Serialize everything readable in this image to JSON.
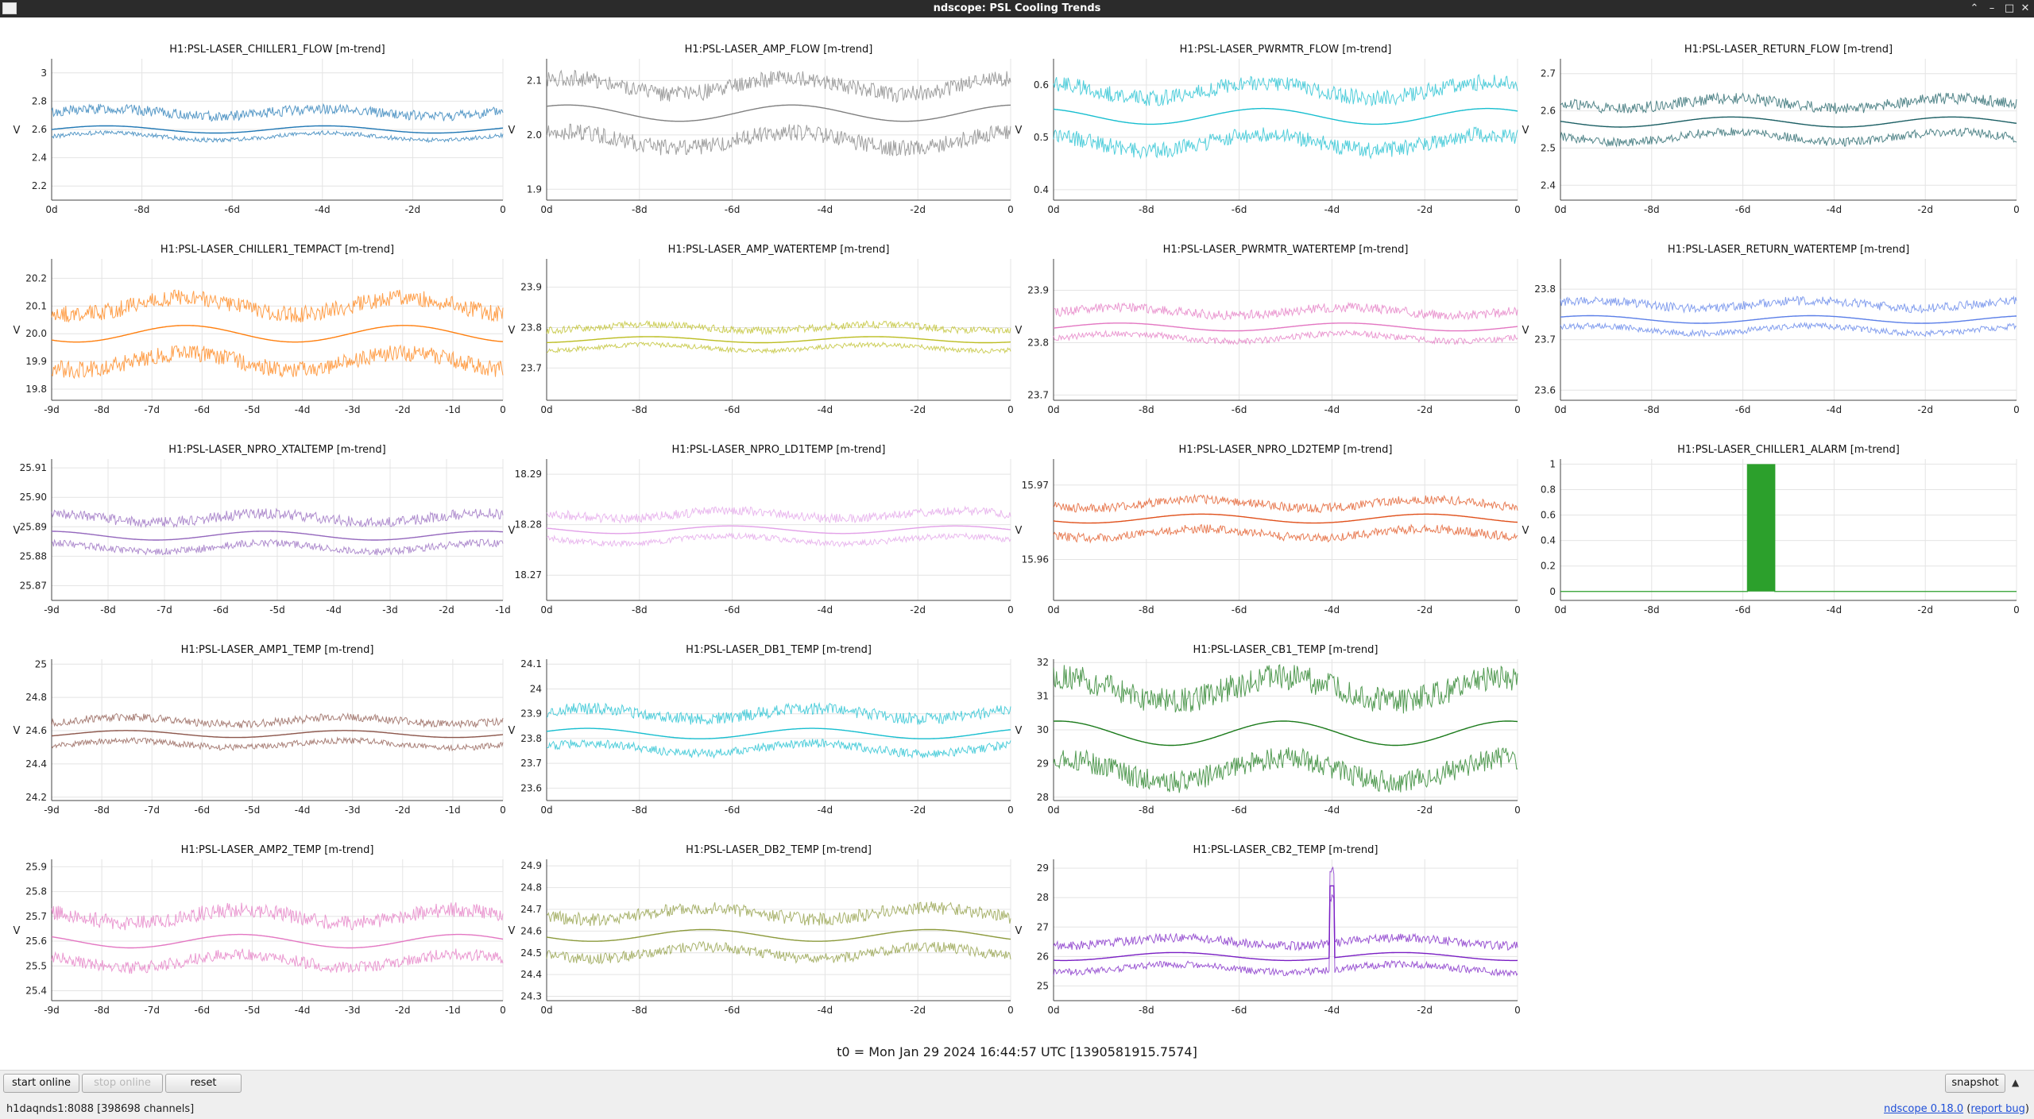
{
  "window": {
    "title": "ndscope: PSL Cooling Trends",
    "minimize_icon": "chevron-up-icon",
    "controls": [
      "minimize-icon",
      "maximize-icon",
      "close-icon"
    ]
  },
  "t0_label": "t0 = Mon Jan 29 2024 16:44:57 UTC [1390581915.7574]",
  "buttons": {
    "start_online": "start online",
    "stop_online": "stop online",
    "reset": "reset",
    "snapshot": "snapshot"
  },
  "status": {
    "server": "h1daqnds1:8088  [398698 channels]",
    "version_link": "ndscope 0.18.0",
    "report_bug_link": "report bug",
    "report_open": "(",
    "report_close": ")"
  },
  "chart_data": [
    {
      "type": "line",
      "title": "H1:PSL-LASER_CHILLER1_FLOW [m-trend]",
      "ylabel": "V",
      "color": "#1f77b4",
      "ylim": [
        2.1,
        3.1
      ],
      "yticks": [
        2.2,
        2.4,
        2.6,
        2.8,
        3
      ],
      "ytick_labels": [
        "2.2",
        "2.4",
        "2.6",
        "2.8",
        "3"
      ],
      "xticks": [
        "0d",
        "-8d",
        "-6d",
        "-4d",
        "-2d",
        "0"
      ],
      "series": {
        "mean": 2.6,
        "min": 2.55,
        "max": 2.72
      }
    },
    {
      "type": "line",
      "title": "H1:PSL-LASER_AMP_FLOW [m-trend]",
      "ylabel": "V",
      "color": "#7f7f7f",
      "ylim": [
        1.88,
        2.14
      ],
      "yticks": [
        1.9,
        2.0,
        2.1
      ],
      "ytick_labels": [
        "1.9",
        "2.0",
        "2.1"
      ],
      "xticks": [
        "0d",
        "-8d",
        "-6d",
        "-4d",
        "-2d",
        "0"
      ],
      "series": {
        "mean": 2.04,
        "min": 1.99,
        "max": 2.09
      }
    },
    {
      "type": "line",
      "title": "H1:PSL-LASER_PWRMTR_FLOW [m-trend]",
      "ylabel": "V",
      "color": "#17becf",
      "ylim": [
        0.38,
        0.65
      ],
      "yticks": [
        0.4,
        0.5,
        0.6
      ],
      "ytick_labels": [
        "0.4",
        "0.5",
        "0.6"
      ],
      "xticks": [
        "0d",
        "-8d",
        "-6d",
        "-4d",
        "-2d",
        "0"
      ],
      "series": {
        "mean": 0.54,
        "min": 0.49,
        "max": 0.59
      }
    },
    {
      "type": "line",
      "title": "H1:PSL-LASER_RETURN_FLOW [m-trend]",
      "ylabel": "V",
      "color": "#1a5e63",
      "ylim": [
        2.36,
        2.74
      ],
      "yticks": [
        2.4,
        2.5,
        2.6,
        2.7
      ],
      "ytick_labels": [
        "2.4",
        "2.5",
        "2.6",
        "2.7"
      ],
      "xticks": [
        "0d",
        "-8d",
        "-6d",
        "-4d",
        "-2d",
        "0"
      ],
      "series": {
        "mean": 2.57,
        "min": 2.53,
        "max": 2.62
      }
    },
    {
      "type": "line",
      "title": "H1:PSL-LASER_CHILLER1_TEMPACT [m-trend]",
      "ylabel": "V",
      "color": "#ff7f0e",
      "ylim": [
        19.76,
        20.27
      ],
      "yticks": [
        19.8,
        19.9,
        20.0,
        20.1,
        20.2
      ],
      "ytick_labels": [
        "19.8",
        "19.9",
        "20.0",
        "20.1",
        "20.2"
      ],
      "xticks": [
        "-9d",
        "-8d",
        "-7d",
        "-6d",
        "-5d",
        "-4d",
        "-3d",
        "-2d",
        "-1d",
        "0"
      ],
      "series": {
        "mean": 20.0,
        "min": 19.9,
        "max": 20.1
      }
    },
    {
      "type": "line",
      "title": "H1:PSL-LASER_AMP_WATERTEMP [m-trend]",
      "ylabel": "V",
      "color": "#bcbd22",
      "ylim": [
        23.62,
        23.97
      ],
      "yticks": [
        23.7,
        23.8,
        23.9
      ],
      "ytick_labels": [
        "23.7",
        "23.8",
        "23.9"
      ],
      "xticks": [
        "0d",
        "-8d",
        "-6d",
        "-4d",
        "-2d",
        "0"
      ],
      "series": {
        "mean": 23.77,
        "min": 23.75,
        "max": 23.8
      }
    },
    {
      "type": "line",
      "title": "H1:PSL-LASER_PWRMTR_WATERTEMP [m-trend]",
      "ylabel": "V",
      "color": "#e377c2",
      "ylim": [
        23.69,
        23.96
      ],
      "yticks": [
        23.7,
        23.8,
        23.9
      ],
      "ytick_labels": [
        "23.7",
        "23.8",
        "23.9"
      ],
      "xticks": [
        "0d",
        "-8d",
        "-6d",
        "-4d",
        "-2d",
        "0"
      ],
      "series": {
        "mean": 23.83,
        "min": 23.81,
        "max": 23.86
      }
    },
    {
      "type": "line",
      "title": "H1:PSL-LASER_RETURN_WATERTEMP [m-trend]",
      "ylabel": "V",
      "color": "#5b7fe8",
      "ylim": [
        23.58,
        23.86
      ],
      "yticks": [
        23.6,
        23.7,
        23.8
      ],
      "ytick_labels": [
        "23.6",
        "23.7",
        "23.8"
      ],
      "xticks": [
        "0d",
        "-8d",
        "-6d",
        "-4d",
        "-2d",
        "0"
      ],
      "series": {
        "mean": 23.74,
        "min": 23.72,
        "max": 23.77
      }
    },
    {
      "type": "line",
      "title": "H1:PSL-LASER_NPRO_XTALTEMP [m-trend]",
      "ylabel": "V",
      "color": "#9467bd",
      "ylim": [
        25.865,
        25.913
      ],
      "yticks": [
        25.87,
        25.88,
        25.89,
        25.9,
        25.91
      ],
      "ytick_labels": [
        "25.87",
        "25.88",
        "25.89",
        "25.90",
        "25.91"
      ],
      "xticks": [
        "-9d",
        "-8d",
        "-7d",
        "-6d",
        "-5d",
        "-4d",
        "-3d",
        "-2d",
        "-1d"
      ],
      "series": {
        "mean": 25.887,
        "min": 25.883,
        "max": 25.893
      }
    },
    {
      "type": "line",
      "title": "H1:PSL-LASER_NPRO_LD1TEMP [m-trend]",
      "ylabel": "V",
      "color": "#e2a0e8",
      "ylim": [
        18.265,
        18.293
      ],
      "yticks": [
        18.27,
        18.28,
        18.29
      ],
      "ytick_labels": [
        "18.27",
        "18.28",
        "18.29"
      ],
      "xticks": [
        "0d",
        "-8d",
        "-6d",
        "-4d",
        "-2d",
        "0"
      ],
      "series": {
        "mean": 18.279,
        "min": 18.277,
        "max": 18.282
      }
    },
    {
      "type": "line",
      "title": "H1:PSL-LASER_NPRO_LD2TEMP [m-trend]",
      "ylabel": "V",
      "color": "#e0501b",
      "ylim": [
        15.9545,
        15.9735
      ],
      "yticks": [
        15.96,
        15.97
      ],
      "ytick_labels": [
        "15.96",
        "15.97"
      ],
      "xticks": [
        "0d",
        "-8d",
        "-6d",
        "-4d",
        "-2d",
        "0"
      ],
      "series": {
        "mean": 15.9655,
        "min": 15.9635,
        "max": 15.9675
      }
    },
    {
      "type": "line",
      "title": "H1:PSL-LASER_CHILLER1_ALARM [m-trend]",
      "ylabel": "V",
      "color": "#2ca02c",
      "ylim": [
        -0.07,
        1.04
      ],
      "yticks": [
        0,
        0.2,
        0.4,
        0.6,
        0.8,
        1
      ],
      "ytick_labels": [
        "0",
        "0.2",
        "0.4",
        "0.6",
        "0.8",
        "1"
      ],
      "xticks": [
        "0d",
        "-8d",
        "-6d",
        "-4d",
        "-2d",
        "0"
      ],
      "series": {
        "baseline": 0,
        "alarm_start": -5.9,
        "alarm_end": -5.3
      }
    },
    {
      "type": "line",
      "title": "H1:PSL-LASER_AMP1_TEMP [m-trend]",
      "ylabel": "V",
      "color": "#8c564b",
      "ylim": [
        24.18,
        25.03
      ],
      "yticks": [
        24.2,
        24.4,
        24.6,
        24.8,
        25
      ],
      "ytick_labels": [
        "24.2",
        "24.4",
        "24.6",
        "24.8",
        "25"
      ],
      "xticks": [
        "-9d",
        "-8d",
        "-7d",
        "-6d",
        "-5d",
        "-4d",
        "-3d",
        "-2d",
        "-1d",
        "0"
      ],
      "series": {
        "mean": 24.58,
        "min": 24.52,
        "max": 24.66
      }
    },
    {
      "type": "line",
      "title": "H1:PSL-LASER_DB1_TEMP [m-trend]",
      "ylabel": "V",
      "color": "#17becf",
      "ylim": [
        23.55,
        24.12
      ],
      "yticks": [
        23.6,
        23.7,
        23.8,
        23.9,
        24,
        24.1
      ],
      "ytick_labels": [
        "23.6",
        "23.7",
        "23.8",
        "23.9",
        "24",
        "24.1"
      ],
      "xticks": [
        "0d",
        "-8d",
        "-6d",
        "-4d",
        "-2d",
        "0"
      ],
      "series": {
        "mean": 23.82,
        "min": 23.76,
        "max": 23.9
      }
    },
    {
      "type": "line",
      "title": "H1:PSL-LASER_CB1_TEMP [m-trend]",
      "ylabel": "V",
      "color": "#1a7a1a",
      "ylim": [
        27.9,
        32.1
      ],
      "yticks": [
        28,
        29,
        30,
        31,
        32
      ],
      "ytick_labels": [
        "28",
        "29",
        "30",
        "31",
        "32"
      ],
      "xticks": [
        "0d",
        "-8d",
        "-6d",
        "-4d",
        "-2d",
        "0"
      ],
      "series": {
        "mean": 29.9,
        "min": 28.8,
        "max": 31.2
      }
    },
    {
      "type": "line",
      "title": "H1:PSL-LASER_AMP2_TEMP [m-trend]",
      "ylabel": "V",
      "color": "#e377c2",
      "ylim": [
        25.36,
        25.93
      ],
      "yticks": [
        25.4,
        25.5,
        25.6,
        25.7,
        25.8,
        25.9
      ],
      "ytick_labels": [
        "25.4",
        "25.5",
        "25.6",
        "25.7",
        "25.8",
        "25.9"
      ],
      "xticks": [
        "-9d",
        "-8d",
        "-7d",
        "-6d",
        "-5d",
        "-4d",
        "-3d",
        "-2d",
        "-1d",
        "0"
      ],
      "series": {
        "mean": 25.6,
        "min": 25.52,
        "max": 25.7
      }
    },
    {
      "type": "line",
      "title": "H1:PSL-LASER_DB2_TEMP [m-trend]",
      "ylabel": "V",
      "color": "#8c9a3c",
      "ylim": [
        24.28,
        24.93
      ],
      "yticks": [
        24.3,
        24.4,
        24.5,
        24.6,
        24.7,
        24.8,
        24.9
      ],
      "ytick_labels": [
        "24.3",
        "24.4",
        "24.5",
        "24.6",
        "24.7",
        "24.8",
        "24.9"
      ],
      "xticks": [
        "0d",
        "-8d",
        "-6d",
        "-4d",
        "-2d",
        "0"
      ],
      "series": {
        "mean": 24.58,
        "min": 24.5,
        "max": 24.68
      }
    },
    {
      "type": "line",
      "title": "H1:PSL-LASER_CB2_TEMP [m-trend]",
      "ylabel": "V",
      "color": "#7a1fc4",
      "ylim": [
        24.5,
        29.3
      ],
      "yticks": [
        25,
        26,
        27,
        28,
        29
      ],
      "ytick_labels": [
        "25",
        "26",
        "27",
        "28",
        "29"
      ],
      "xticks": [
        "0d",
        "-8d",
        "-6d",
        "-4d",
        "-2d",
        "0"
      ],
      "series": {
        "mean": 26.0,
        "min": 25.6,
        "max": 26.5,
        "spike_at": -4,
        "spike_value": 28.4
      }
    }
  ]
}
